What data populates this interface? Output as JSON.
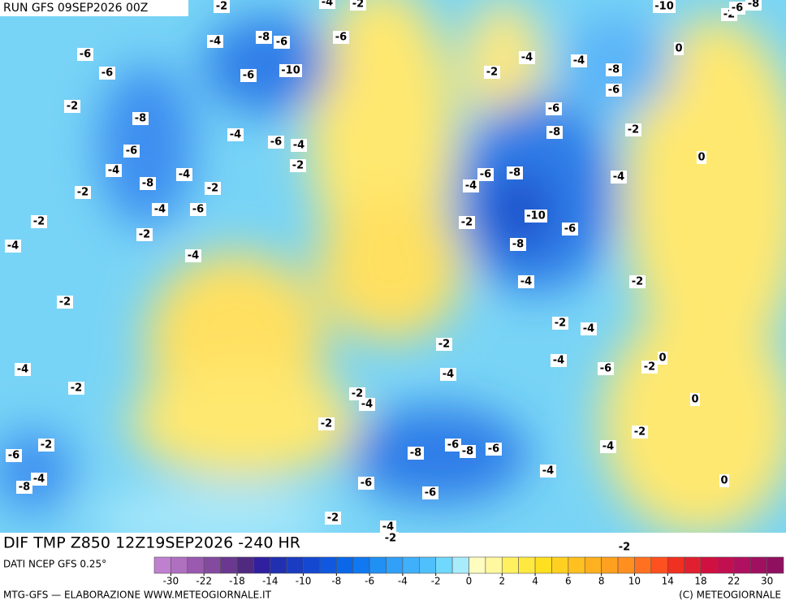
{
  "header": {
    "run": "RUN GFS 09SEP2026 00Z"
  },
  "map": {
    "title": "DIF TMP Z850 12Z19SEP2026 -240 HR",
    "contour_labels": [
      -2,
      -4,
      -2,
      -10,
      -2,
      -6,
      -8,
      -6,
      -4,
      -8,
      -6,
      -6,
      -6,
      -6,
      -10,
      -4,
      -4,
      -8,
      0,
      -2,
      -6,
      -2,
      -8,
      -6,
      -4,
      -6,
      -4,
      -8,
      -2,
      -6,
      0,
      -4,
      -2,
      -8,
      -4,
      -6,
      -8,
      -4,
      -2,
      -2,
      -4,
      -4,
      -6,
      -10,
      -2,
      -2,
      -6,
      -2,
      -8,
      -4,
      -4,
      -4,
      -2,
      -2,
      -2,
      -4,
      -2,
      -4,
      0,
      -4,
      -6,
      -2,
      -4,
      -2,
      -2,
      -4,
      0,
      -2,
      -2,
      -2,
      -6,
      -6,
      -8,
      -6,
      -4,
      -8,
      -4,
      -8,
      -4,
      0,
      -6,
      -6,
      -2,
      -4,
      -2,
      -2
    ]
  },
  "legend": {
    "source": "DATI NCEP GFS 0.25°",
    "colors": [
      "#c080d0",
      "#b070c0",
      "#9a5ab0",
      "#844aa0",
      "#6a3890",
      "#502a80",
      "#3020a0",
      "#2030b0",
      "#1a3cc0",
      "#1548d0",
      "#1058e0",
      "#0a68e8",
      "#1078f0",
      "#2090f5",
      "#30a0f8",
      "#40b0fa",
      "#50c0fc",
      "#70d8fc",
      "#a8ecfc",
      "#fffcc0",
      "#fff8a0",
      "#fff060",
      "#ffe840",
      "#ffe020",
      "#ffd020",
      "#ffc020",
      "#ffb020",
      "#ffa020",
      "#ff9020",
      "#ff7020",
      "#ff5020",
      "#f03020",
      "#e02030",
      "#d01040",
      "#c01050",
      "#b01060",
      "#a01060",
      "#901060"
    ],
    "ticks": [
      -30,
      -22,
      -18,
      -14,
      -10,
      -8,
      -6,
      -4,
      -2,
      0,
      2,
      4,
      6,
      8,
      10,
      14,
      18,
      22,
      30
    ]
  },
  "footer": {
    "credit": "MTG-GFS — ELABORAZIONE WWW.METEOGIORNALE.IT",
    "copyright": "(C) METEOGIORNALE"
  }
}
